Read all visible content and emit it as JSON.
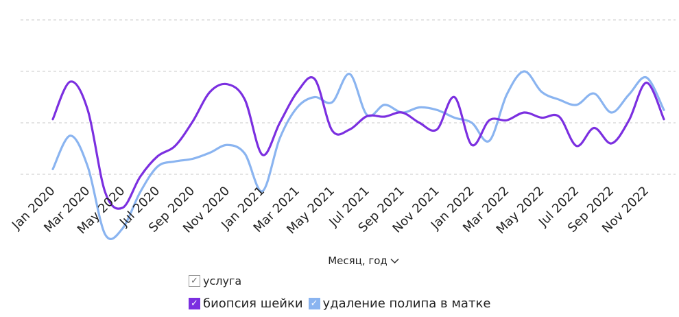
{
  "chart_data": {
    "type": "line",
    "xlabel": "Месяц, год",
    "ylabel": "",
    "categories": [
      "Jan 2020",
      "Feb 2020",
      "Mar 2020",
      "Apr 2020",
      "May 2020",
      "Jun 2020",
      "Jul 2020",
      "Aug 2020",
      "Sep 2020",
      "Oct 2020",
      "Nov 2020",
      "Dec 2020",
      "Jan 2021",
      "Feb 2021",
      "Mar 2021",
      "Apr 2021",
      "May 2021",
      "Jun 2021",
      "Jul 2021",
      "Aug 2021",
      "Sep 2021",
      "Oct 2021",
      "Nov 2021",
      "Dec 2021",
      "Jan 2022",
      "Feb 2022",
      "Mar 2022",
      "Apr 2022",
      "May 2022",
      "Jun 2022",
      "Jul 2022",
      "Aug 2022",
      "Sep 2022",
      "Oct 2022",
      "Nov 2022",
      "Dec 2022"
    ],
    "tick_labels": [
      "Jan 2020",
      "Mar 2020",
      "May 2020",
      "Jul 2020",
      "Sep 2020",
      "Nov 2020",
      "Jan 2021",
      "Mar 2021",
      "May 2021",
      "Jul 2021",
      "Sep 2021",
      "Nov 2021",
      "Jan 2022",
      "Mar 2022",
      "May 2022",
      "Jul 2022",
      "Sep 2022",
      "Nov 2022"
    ],
    "ylim": [
      0,
      4
    ],
    "gridlines": [
      1,
      2,
      3,
      4
    ],
    "grid": true,
    "series": [
      {
        "name": "биопсия шейки",
        "color": "#7b2fe0",
        "values": [
          2.07,
          2.8,
          2.25,
          0.65,
          0.35,
          0.95,
          1.35,
          1.55,
          2.02,
          2.6,
          2.75,
          2.45,
          1.38,
          2.0,
          2.6,
          2.85,
          1.85,
          1.87,
          2.13,
          2.12,
          2.2,
          2.0,
          1.87,
          2.5,
          1.57,
          2.05,
          2.05,
          2.2,
          2.1,
          2.12,
          1.55,
          1.9,
          1.6,
          2.05,
          2.78,
          2.07
        ]
      },
      {
        "name": "удаление полипа в матке",
        "color": "#8ab4f0",
        "values": [
          1.1,
          1.75,
          1.15,
          -0.17,
          -0.05,
          0.65,
          1.15,
          1.25,
          1.3,
          1.42,
          1.57,
          1.4,
          0.67,
          1.7,
          2.3,
          2.5,
          2.4,
          2.95,
          2.15,
          2.35,
          2.2,
          2.3,
          2.25,
          2.1,
          2.0,
          1.65,
          2.55,
          3.0,
          2.6,
          2.45,
          2.35,
          2.57,
          2.2,
          2.55,
          2.88,
          2.25
        ]
      }
    ],
    "legend_placement": "bottom"
  },
  "legend": {
    "header_label": "услуга",
    "items": [
      {
        "label": "биопсия шейки",
        "color": "#7b2fe0"
      },
      {
        "label": "удаление полипа в матке",
        "color": "#8ab4f0"
      }
    ]
  },
  "icons": {
    "axis_dropdown": "chevron-down-icon",
    "checkbox": "check-icon"
  }
}
